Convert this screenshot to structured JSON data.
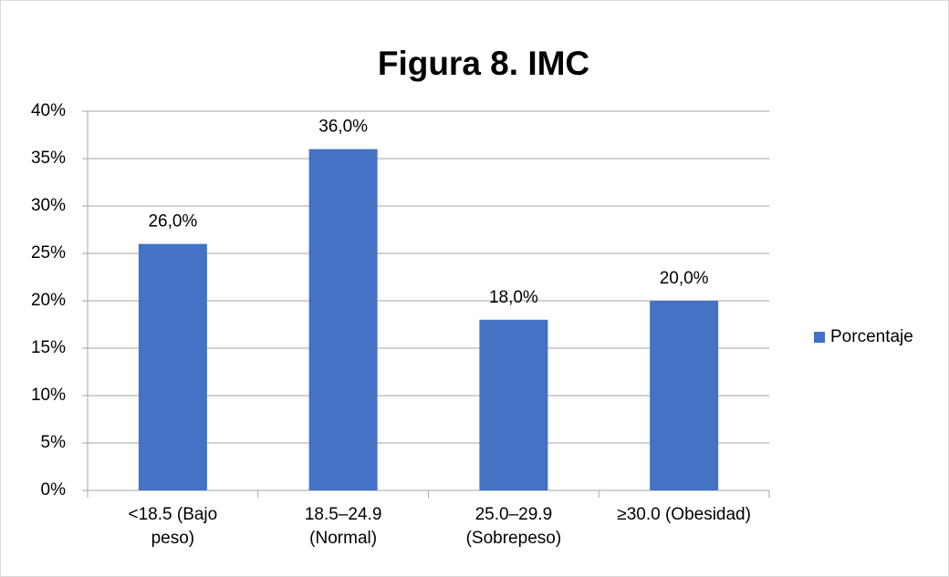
{
  "chart_data": {
    "type": "bar",
    "title": "Figura 8. IMC",
    "categories": [
      "<18.5 (Bajo peso)",
      "18.5–24.9 (Normal)",
      "25.0–29.9 (Sobrepeso)",
      "≥30.0 (Obesidad)"
    ],
    "series": [
      {
        "name": "Porcentaje",
        "color": "#4472c4",
        "values": [
          26,
          36,
          18,
          20
        ],
        "value_labels": [
          "26,0%",
          "36,0%",
          "18,0%",
          "20,0%"
        ]
      }
    ],
    "ylim": [
      0,
      40
    ],
    "yticks": [
      {
        "value": 0,
        "label": "0%"
      },
      {
        "value": 5,
        "label": "5%"
      },
      {
        "value": 10,
        "label": "10%"
      },
      {
        "value": 15,
        "label": "15%"
      },
      {
        "value": 20,
        "label": "20%"
      },
      {
        "value": 25,
        "label": "25%"
      },
      {
        "value": 30,
        "label": "30%"
      },
      {
        "value": 35,
        "label": "35%"
      },
      {
        "value": 40,
        "label": "40%"
      }
    ],
    "grid": true,
    "legend": "right"
  }
}
